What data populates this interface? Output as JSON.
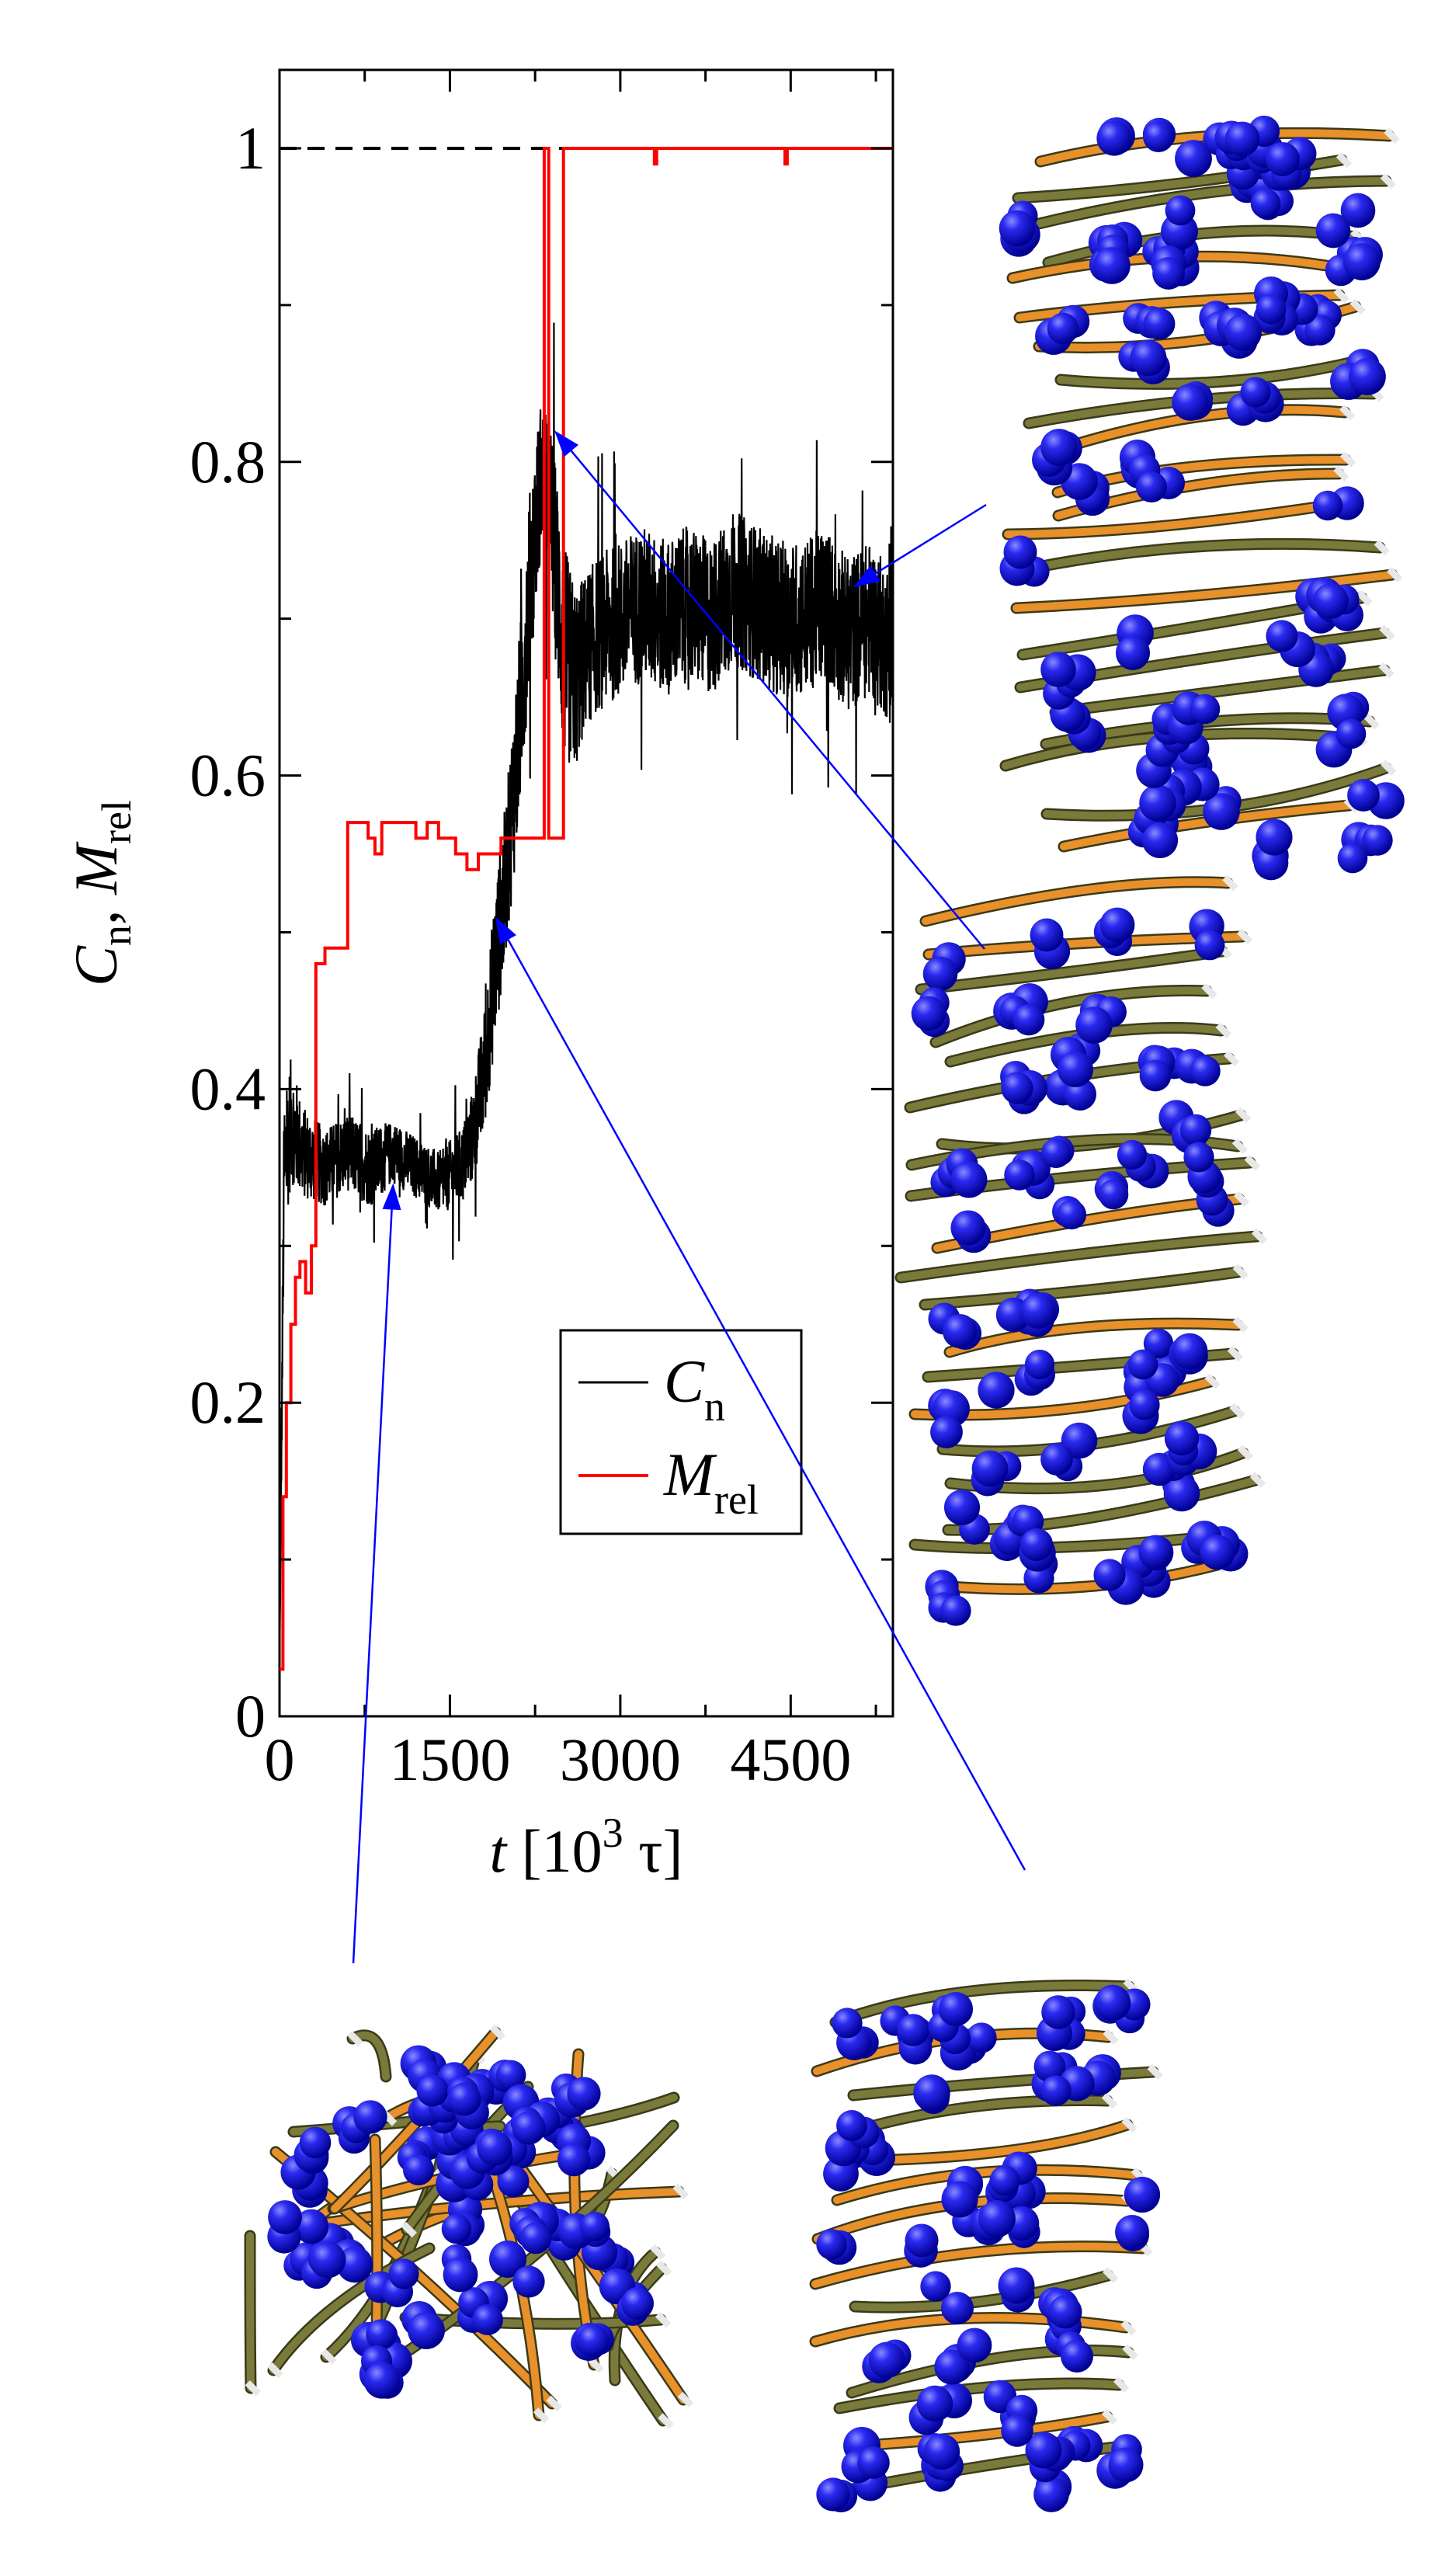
{
  "chart_data": {
    "type": "line",
    "title": "",
    "xlabel": {
      "italic": "t",
      "rest": " [10",
      "sup": "3",
      "after": " τ]"
    },
    "ylabel": {
      "c": "C",
      "c_sub": "n",
      "sep": ", ",
      "m": "M",
      "m_sub": "rel"
    },
    "xlim": [
      0,
      5400
    ],
    "ylim": [
      0,
      1.05
    ],
    "x_ticks": [
      0,
      1500,
      3000,
      4500
    ],
    "x_tick_labels": [
      "0",
      "1500",
      "3000",
      "4500"
    ],
    "y_ticks": [
      0,
      0.2,
      0.4,
      0.6,
      0.8,
      1
    ],
    "y_tick_labels": [
      "0",
      "0.2",
      "0.4",
      "0.6",
      "0.8",
      "1"
    ],
    "grid": false,
    "legend_position": "lower-right",
    "reference_line": {
      "y": 1.0,
      "style": "dashed",
      "color": "#000000"
    },
    "series": [
      {
        "legend_label": {
          "main": "C",
          "sub": "n"
        },
        "color": "#000000",
        "style": "noisy",
        "x": [
          0,
          40,
          100,
          200,
          400,
          600,
          800,
          1000,
          1200,
          1400,
          1600,
          1700,
          1800,
          1900,
          2000,
          2100,
          2200,
          2300,
          2400,
          2500,
          2600,
          2700,
          2800,
          3000,
          3200,
          3400,
          3600,
          3800,
          4000,
          4200,
          4400,
          4600,
          4800,
          5000,
          5200,
          5400
        ],
        "y": [
          0.03,
          0.35,
          0.38,
          0.36,
          0.35,
          0.36,
          0.35,
          0.36,
          0.35,
          0.34,
          0.35,
          0.37,
          0.41,
          0.48,
          0.54,
          0.62,
          0.72,
          0.79,
          0.76,
          0.68,
          0.66,
          0.68,
          0.69,
          0.7,
          0.71,
          0.7,
          0.71,
          0.7,
          0.72,
          0.71,
          0.7,
          0.7,
          0.71,
          0.69,
          0.7,
          0.68
        ],
        "noise_amplitude": [
          0.0,
          0.05,
          0.04,
          0.03,
          0.025,
          0.025,
          0.025,
          0.02,
          0.02,
          0.02,
          0.025,
          0.03,
          0.04,
          0.05,
          0.05,
          0.06,
          0.06,
          0.05,
          0.06,
          0.07,
          0.06,
          0.05,
          0.05,
          0.05,
          0.05,
          0.05,
          0.05,
          0.05,
          0.05,
          0.05,
          0.05,
          0.05,
          0.05,
          0.05,
          0.05,
          0.05
        ]
      },
      {
        "legend_label": {
          "main": "M",
          "sub": "rel"
        },
        "color": "#ff0000",
        "style": "step",
        "x": [
          0,
          30,
          60,
          100,
          140,
          180,
          230,
          280,
          320,
          400,
          480,
          600,
          700,
          780,
          840,
          900,
          1000,
          1100,
          1200,
          1300,
          1400,
          1550,
          1650,
          1750,
          1850,
          1950,
          2050,
          2150,
          2250,
          2330,
          2370,
          2450,
          2500,
          2600,
          3300,
          3320,
          4450,
          4470,
          5400
        ],
        "y": [
          0.03,
          0.14,
          0.2,
          0.25,
          0.28,
          0.29,
          0.27,
          0.3,
          0.48,
          0.49,
          0.49,
          0.57,
          0.57,
          0.56,
          0.55,
          0.57,
          0.57,
          0.57,
          0.56,
          0.57,
          0.56,
          0.55,
          0.54,
          0.55,
          0.55,
          0.56,
          0.56,
          0.56,
          0.56,
          1.0,
          0.56,
          0.56,
          1.0,
          1.0,
          0.99,
          1.0,
          0.99,
          1.0,
          1.0
        ]
      }
    ]
  },
  "insets": [
    {
      "name": "inset-top-right-structure",
      "points_to": {
        "x": 5050,
        "y": 0.72
      }
    },
    {
      "name": "inset-middle-right-structure",
      "points_to": {
        "x": 2420,
        "y": 0.82
      }
    },
    {
      "name": "inset-bottom-left-structure",
      "points_to": {
        "x": 1000,
        "y": 0.34
      }
    },
    {
      "name": "inset-bottom-right-structure",
      "points_to": {
        "x": 1900,
        "y": 0.51
      }
    }
  ],
  "colors": {
    "pointer": "#0000ff",
    "bead": "#1a1adc",
    "ribbon_olive": "#7a7a3a",
    "ribbon_orange": "#e8902a",
    "ribbon_white": "#e8e8e8"
  }
}
